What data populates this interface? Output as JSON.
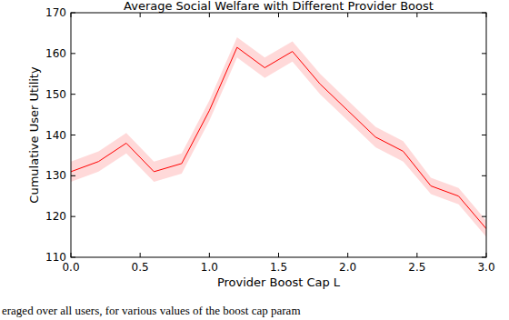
{
  "chart_data": {
    "type": "line",
    "title": "Average Social Welfare with Different Provider Boost",
    "x_label": "Provider Boost Cap L",
    "y_label": "Cumulative User Utility",
    "annotations": [
      "eraged over all users, for various values of the boost cap param"
    ],
    "x": [
      0.0,
      0.2,
      0.4,
      0.6,
      0.8,
      1.0,
      1.2,
      1.4,
      1.6,
      1.8,
      2.0,
      2.2,
      2.4,
      2.6,
      2.8,
      3.0
    ],
    "series": [
      {
        "name": "Cumulative User Utility",
        "color": "#ff0000",
        "values": [
          131,
          133.5,
          138,
          131,
          133,
          146,
          161.5,
          156.5,
          160.5,
          152.5,
          146,
          139.5,
          136,
          127.5,
          125,
          117
        ],
        "error": [
          2.5,
          2.5,
          2.5,
          2.5,
          2.5,
          2.5,
          2.5,
          2.5,
          2.5,
          2.5,
          2.5,
          2.5,
          2.5,
          2,
          2,
          2
        ]
      }
    ],
    "xlim": [
      0,
      3
    ],
    "ylim": [
      110,
      170
    ],
    "xticks": [
      {
        "value": 0,
        "label": "0.0"
      },
      0.5,
      {
        "value": 1,
        "label": "1.0"
      },
      1.5,
      {
        "value": 2,
        "label": "2.0"
      },
      2.5,
      {
        "value": 3,
        "label": "3.0"
      }
    ],
    "yticks": [
      110,
      120,
      130,
      140,
      150,
      160,
      170
    ],
    "grid": false
  }
}
